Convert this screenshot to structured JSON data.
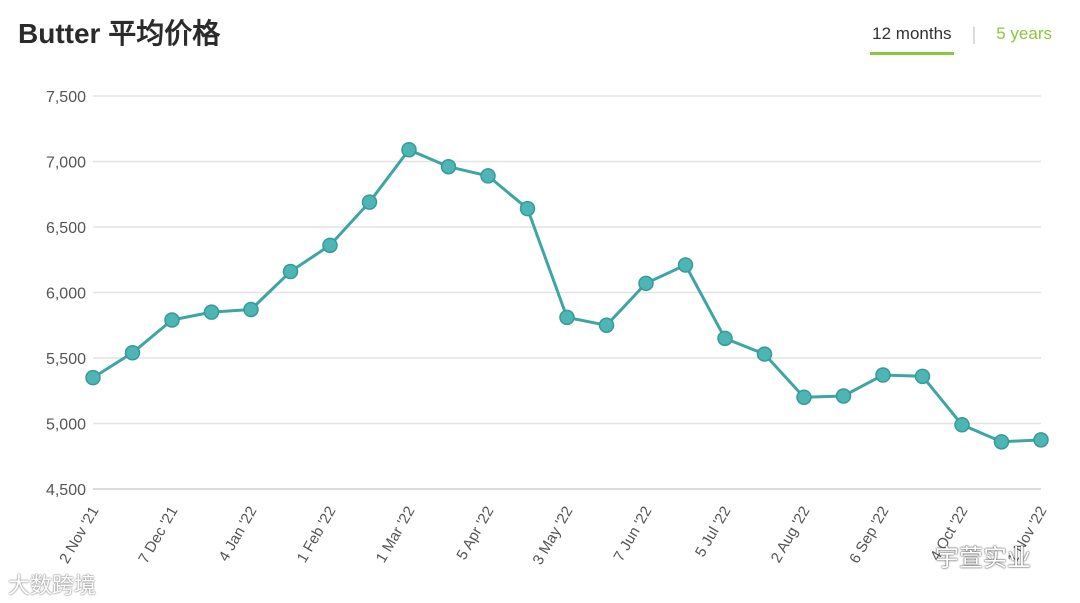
{
  "header": {
    "title": "Butter 平均价格",
    "tabs": [
      {
        "label": "12 months",
        "active": true
      },
      {
        "label": "5 years",
        "active": false
      }
    ]
  },
  "colors": {
    "line": "#3fa5a3",
    "point_fill": "#4db6b4",
    "accent": "#8cc63f",
    "grid": "#e3e3e3"
  },
  "chart_data": {
    "type": "line",
    "ylim": [
      4500,
      7500
    ],
    "yticks": [
      "7,500",
      "7,000",
      "6,500",
      "6,000",
      "5,500",
      "5,000",
      "4,500"
    ],
    "ytick_values": [
      7500,
      7000,
      6500,
      6000,
      5500,
      5000,
      4500
    ],
    "x_labels": [
      "2 Nov '21",
      "7 Dec '21",
      "4 Jan '22",
      "1 Feb '22",
      "1 Mar '22",
      "5 Apr '22",
      "3 May '22",
      "7 Jun '22",
      "5 Jul '22",
      "2 Aug '22",
      "6 Sep '22",
      "4 Oct '22",
      "1 Nov '22"
    ],
    "series": [
      {
        "values": [
          5350,
          5540,
          5790,
          5850,
          5870,
          6160,
          6360,
          6690,
          7090,
          6960,
          6890,
          6640,
          5810,
          5750,
          6070,
          6210,
          5650,
          5530,
          5200,
          5210,
          5370,
          5360,
          4990,
          4860,
          4875
        ]
      }
    ]
  },
  "watermarks": {
    "left": "大数跨境",
    "right": "宇萱实业"
  }
}
